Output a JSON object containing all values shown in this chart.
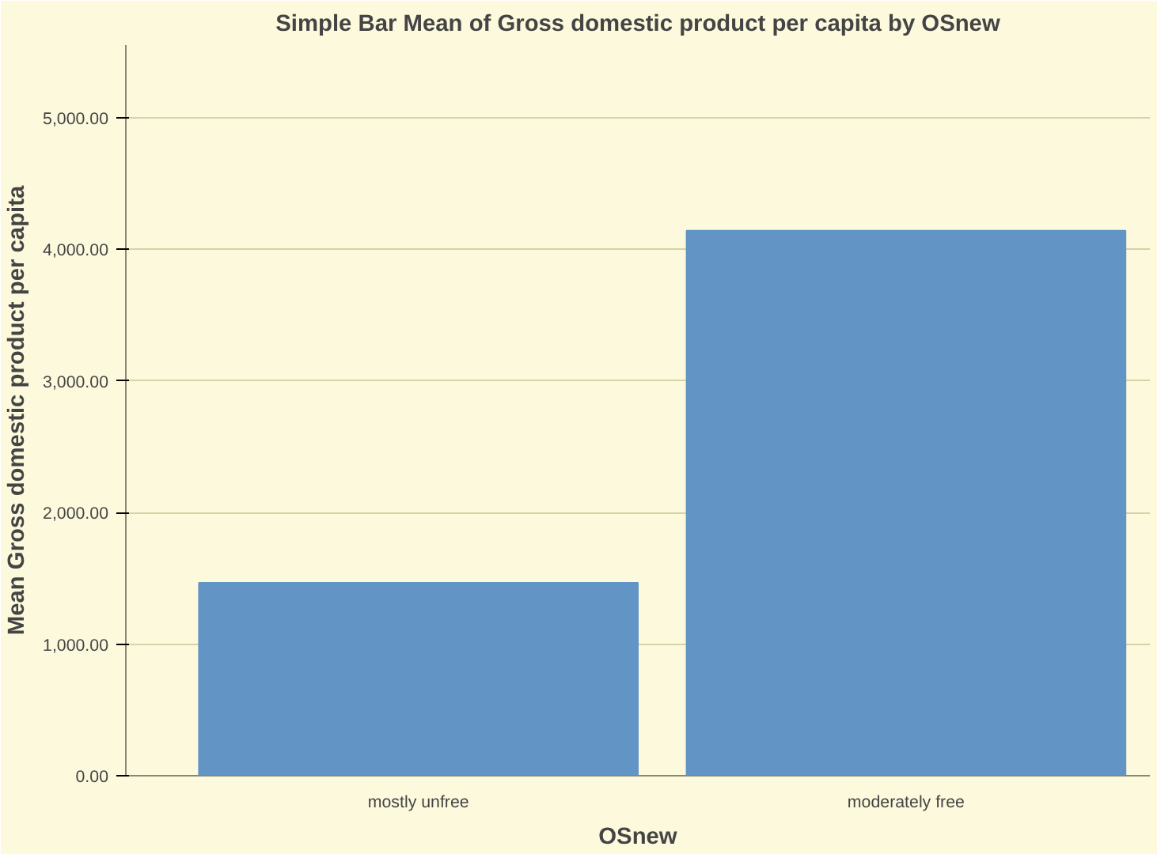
{
  "chart_data": {
    "type": "bar",
    "title": "Simple Bar Mean of Gross domestic product per capita by OSnew",
    "xlabel": "OSnew",
    "ylabel": "Mean Gross domestic product per capita",
    "categories": [
      "mostly unfree",
      "moderately free"
    ],
    "values": [
      1465,
      4140
    ],
    "color": "#6394c6",
    "ylim": [
      0,
      5550
    ],
    "yticks": [
      {
        "value": 0,
        "label": "0.00"
      },
      {
        "value": 1000,
        "label": "1,000.00"
      },
      {
        "value": 2000,
        "label": "2,000.00"
      },
      {
        "value": 3000,
        "label": "3,000.00"
      },
      {
        "value": 4000,
        "label": "4,000.00"
      },
      {
        "value": 5000,
        "label": "5,000.00"
      }
    ],
    "grid": "y"
  }
}
